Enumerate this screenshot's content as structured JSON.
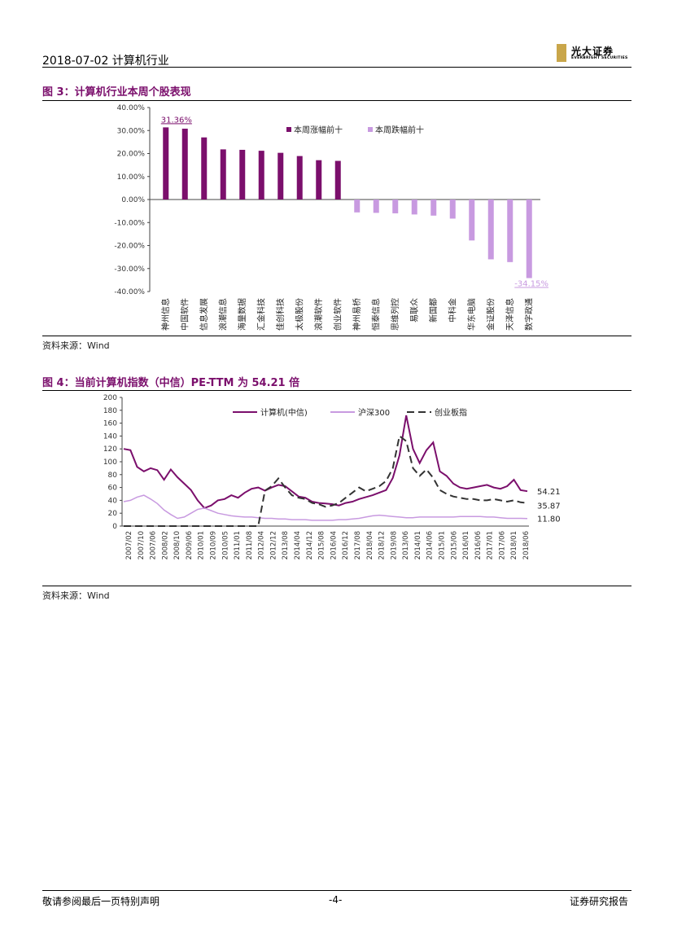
{
  "header": {
    "date_title": "2018-07-02   计算机行业",
    "logo_cn": "光大证券",
    "logo_en": "EVERBRIGHT SECURITIES"
  },
  "figure3": {
    "title": "图 3：计算机行业本周个股表现",
    "source": "资料来源：Wind"
  },
  "figure4": {
    "title": "图 4：当前计算机指数（中信）PE-TTM 为 54.21 倍",
    "source": "资料来源：Wind"
  },
  "footer": {
    "left": "敬请参阅最后一页特别声明",
    "center": "-4-",
    "right": "证券研究报告"
  },
  "chart_data": [
    {
      "type": "bar",
      "title": "",
      "ylim": [
        -40,
        40
      ],
      "yticks": [
        "40.00%",
        "30.00%",
        "20.00%",
        "10.00%",
        "0.00%",
        "-10.00%",
        "-20.00%",
        "-30.00%",
        "-40.00%"
      ],
      "legend_position": "top-right",
      "colors": {
        "gainers": "#7b0f6c",
        "losers": "#c89ae0"
      },
      "series": [
        {
          "name": "本周涨幅前十",
          "categories": [
            "神州信息",
            "中国软件",
            "信息发展",
            "浪潮信息",
            "海量数据",
            "汇金科技",
            "佳创科技",
            "太极股份",
            "浪潮软件",
            "创业软件"
          ],
          "values": [
            31.36,
            30.8,
            27.0,
            21.8,
            21.6,
            21.2,
            20.3,
            18.9,
            17.1,
            16.8
          ]
        },
        {
          "name": "本周跌幅前十",
          "categories": [
            "神州易桥",
            "恒泰信息",
            "思维列控",
            "易联众",
            "新国都",
            "中科金",
            "华东电脑",
            "金证股份",
            "天泽信息",
            "数字政通"
          ],
          "values": [
            -5.6,
            -5.8,
            -6.0,
            -6.5,
            -7.0,
            -8.3,
            -17.8,
            -26.0,
            -27.2,
            -34.15
          ]
        }
      ],
      "data_labels": [
        "31.36%",
        "-34.15%"
      ]
    },
    {
      "type": "line",
      "title": "",
      "ylim": [
        0,
        200
      ],
      "yticks": [
        "200",
        "180",
        "160",
        "140",
        "120",
        "100",
        "80",
        "60",
        "40",
        "20",
        "0"
      ],
      "xticks": [
        "2007/02",
        "2007/10",
        "2007/06",
        "2008/02",
        "2008/10",
        "2009/06",
        "2010/01",
        "2010/09",
        "2010/05",
        "2011/01",
        "2011/08",
        "2012/04",
        "2012/12",
        "2013/08",
        "2014/04",
        "2014/12",
        "2015/08",
        "2016/04",
        "2016/12",
        "2017/08",
        "2018/04",
        "2018/12",
        "2019/08",
        "2013/06",
        "2014/01",
        "2014/06",
        "2015/01",
        "2015/06",
        "2016/01",
        "2016/06",
        "2017/01",
        "2017/06",
        "2018/01",
        "2018/06"
      ],
      "legend_position": "top",
      "end_labels": [
        "54.21",
        "35.87",
        "11.80"
      ],
      "series": [
        {
          "name": "计算机(中信)",
          "color": "#7b0f6c",
          "style": "solid",
          "values": [
            120,
            118,
            92,
            85,
            90,
            87,
            72,
            88,
            76,
            66,
            56,
            40,
            28,
            32,
            40,
            42,
            48,
            44,
            52,
            58,
            60,
            55,
            60,
            64,
            62,
            54,
            46,
            44,
            38,
            36,
            35,
            34,
            32,
            36,
            38,
            42,
            45,
            48,
            52,
            56,
            75,
            110,
            172,
            120,
            98,
            118,
            130,
            85,
            78,
            66,
            60,
            58,
            60,
            62,
            64,
            60,
            58,
            62,
            72,
            56,
            54.21
          ]
        },
        {
          "name": "沪深300",
          "color": "#c89ae0",
          "style": "solid",
          "values": [
            38,
            40,
            45,
            48,
            42,
            35,
            25,
            18,
            12,
            14,
            20,
            26,
            28,
            24,
            20,
            18,
            16,
            15,
            14,
            14,
            13,
            12,
            12,
            11,
            11,
            10,
            10,
            10,
            9,
            9,
            9,
            9,
            10,
            10,
            11,
            12,
            14,
            16,
            17,
            16,
            15,
            14,
            13,
            13,
            14,
            14,
            14,
            14,
            14,
            14,
            15,
            15,
            15,
            15,
            14,
            14,
            13,
            12,
            12,
            12,
            11.8
          ]
        },
        {
          "name": "创业板指",
          "color": "#333333",
          "style": "dashed",
          "values": [
            0,
            0,
            0,
            0,
            0,
            0,
            0,
            0,
            0,
            0,
            0,
            0,
            0,
            0,
            0,
            0,
            0,
            0,
            0,
            0,
            0,
            55,
            62,
            74,
            60,
            48,
            44,
            42,
            36,
            34,
            30,
            32,
            36,
            44,
            52,
            60,
            54,
            58,
            62,
            70,
            90,
            140,
            132,
            90,
            78,
            88,
            75,
            56,
            50,
            46,
            44,
            42,
            42,
            40,
            40,
            42,
            40,
            38,
            40,
            37,
            35.87
          ]
        }
      ]
    }
  ]
}
